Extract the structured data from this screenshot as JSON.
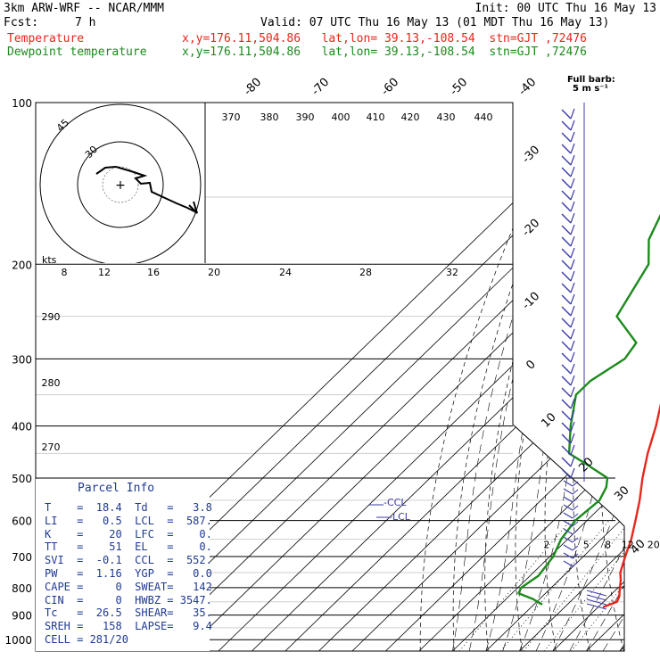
{
  "header": {
    "model": "3km ARW-WRF -- NCAR/MMM",
    "init": "Init: 00 UTC Thu 16 May 13",
    "fcst_label": "Fcst:",
    "fcst_value": "7 h",
    "valid": "Valid: 07 UTC Thu 16 May 13 (01 MDT Thu 16 May 13)",
    "temp_label": "Temperature",
    "temp_info": "x,y=176.11,504.86   lat,lon= 39.13,-108.54  stn=GJT ,72476",
    "dew_label": "Dewpoint temperature",
    "dew_info": "x,y=176.11,504.86   lat,lon= 39.13,-108.54  stn=GJT ,72476",
    "barb_title": "Full barb:",
    "barb_unit": "5 m s⁻¹"
  },
  "colors": {
    "temperature": "#e8261c",
    "dewpoint": "#1c8a1c",
    "barbs": "#3b3ba8",
    "parcel": "#1f3a93"
  },
  "chart_data": {
    "type": "skew-t",
    "pressure_levels": [
      "100",
      "200",
      "300",
      "400",
      "500",
      "600",
      "700",
      "800",
      "900",
      "1000"
    ],
    "isotherm_labels_top": [
      "-80",
      "-70",
      "-60",
      "-50",
      "-40"
    ],
    "isotherm_labels_right": [
      "-30",
      "-20",
      "-10",
      "0",
      "10",
      "20",
      "30",
      "40"
    ],
    "theta_labels": [
      "370",
      "380",
      "390",
      "400",
      "410",
      "420",
      "430",
      "440"
    ],
    "theta_labels_left": [
      "290",
      "280",
      "270"
    ],
    "mixing_ratio_labels": [
      "2",
      "5",
      "8",
      "12",
      "20"
    ],
    "hodograph": {
      "unit": "kts",
      "ring_labels": [
        "8",
        "12",
        "16",
        "20",
        "24",
        "28",
        "32"
      ],
      "circle_labels": [
        "30",
        "45"
      ]
    },
    "temperature": [
      {
        "p": 870,
        "t": 21.5
      },
      {
        "p": 850,
        "t": 24.0
      },
      {
        "p": 830,
        "t": 23.0
      },
      {
        "p": 800,
        "t": 20.5
      },
      {
        "p": 775,
        "t": 18.5
      },
      {
        "p": 750,
        "t": 16.0
      },
      {
        "p": 700,
        "t": 12.5
      },
      {
        "p": 650,
        "t": 9.0
      },
      {
        "p": 600,
        "t": 4.5
      },
      {
        "p": 550,
        "t": -0.5
      },
      {
        "p": 500,
        "t": -6.5
      },
      {
        "p": 450,
        "t": -12.5
      },
      {
        "p": 400,
        "t": -18.5
      },
      {
        "p": 350,
        "t": -26.0
      },
      {
        "p": 300,
        "t": -35.0
      },
      {
        "p": 250,
        "t": -45.0
      },
      {
        "p": 200,
        "t": -56.5
      },
      {
        "p": 180,
        "t": -60.0
      },
      {
        "p": 160,
        "t": -60.5
      },
      {
        "p": 140,
        "t": -61.0
      },
      {
        "p": 120,
        "t": -62.0
      },
      {
        "p": 100,
        "t": -64.0
      }
    ],
    "dewpoint": [
      {
        "p": 860,
        "t": 2.5
      },
      {
        "p": 840,
        "t": -2.0
      },
      {
        "p": 820,
        "t": -8.0
      },
      {
        "p": 800,
        "t": -9.0
      },
      {
        "p": 760,
        "t": -7.5
      },
      {
        "p": 700,
        "t": -9.0
      },
      {
        "p": 650,
        "t": -12.0
      },
      {
        "p": 600,
        "t": -13.5
      },
      {
        "p": 550,
        "t": -12.5
      },
      {
        "p": 520,
        "t": -14.5
      },
      {
        "p": 500,
        "t": -17.0
      },
      {
        "p": 470,
        "t": -28.0
      },
      {
        "p": 450,
        "t": -36.0
      },
      {
        "p": 400,
        "t": -44.0
      },
      {
        "p": 350,
        "t": -52.0
      },
      {
        "p": 330,
        "t": -52.0
      },
      {
        "p": 300,
        "t": -48.5
      },
      {
        "p": 280,
        "t": -50.0
      },
      {
        "p": 250,
        "t": -64.0
      },
      {
        "p": 200,
        "t": -70.5
      },
      {
        "p": 180,
        "t": -78.0
      },
      {
        "p": 150,
        "t": -85.0
      },
      {
        "p": 120,
        "t": -92.0
      },
      {
        "p": 100,
        "t": -96.0
      }
    ],
    "levels": {
      "ccl_label": "CCL",
      "lcl_label": "LCL"
    }
  },
  "parcel": {
    "title": "Parcel Info",
    "rows": [
      {
        "k1": "T",
        "v1": "18.4",
        "k2": "Td",
        "v2": "3.8"
      },
      {
        "k1": "LI",
        "v1": "0.5",
        "k2": "LCL",
        "v2": "587."
      },
      {
        "k1": "K",
        "v1": "20",
        "k2": "LFC",
        "v2": "0."
      },
      {
        "k1": "TT",
        "v1": "51",
        "k2": "EL",
        "v2": "0."
      },
      {
        "k1": "SVI",
        "v1": "-0.1",
        "k2": "CCL",
        "v2": "552."
      },
      {
        "k1": "PW",
        "v1": "1.16",
        "k2": "YGP",
        "v2": "0.0"
      },
      {
        "k1": "CAPE",
        "v1": "0",
        "k2": "SWEAT",
        "v2": "142"
      },
      {
        "k1": "CIN",
        "v1": "0",
        "k2": "HWBZ",
        "v2": "3547."
      },
      {
        "k1": "Tc",
        "v1": "26.5",
        "k2": "SHEAR",
        "v2": "35."
      },
      {
        "k1": "SREH",
        "v1": "158",
        "k2": "LAPSE",
        "v2": "9.4"
      }
    ],
    "cell": "CELL = 281/20"
  }
}
